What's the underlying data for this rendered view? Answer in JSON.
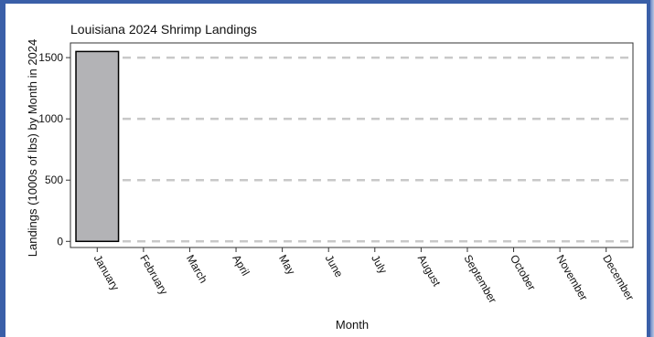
{
  "chart_data": {
    "type": "bar",
    "title": "Louisiana 2024 Shrimp Landings",
    "xlabel": "Month",
    "ylabel": "Landings (1000s of lbs) by Month in 2024",
    "categories": [
      "January",
      "February",
      "March",
      "April",
      "May",
      "June",
      "July",
      "August",
      "September",
      "October",
      "November",
      "December"
    ],
    "values": [
      1550,
      null,
      null,
      null,
      null,
      null,
      null,
      null,
      null,
      null,
      null,
      null
    ],
    "ylim": [
      -50,
      1620
    ],
    "yticks": [
      0,
      500,
      1000,
      1500
    ],
    "grid": "horizontal dashed",
    "bar_color": "#b3b3b6",
    "bar_edge_color": "#000000",
    "grid_color": "#c8c8c8",
    "frame_color": "#3a5fa8"
  }
}
